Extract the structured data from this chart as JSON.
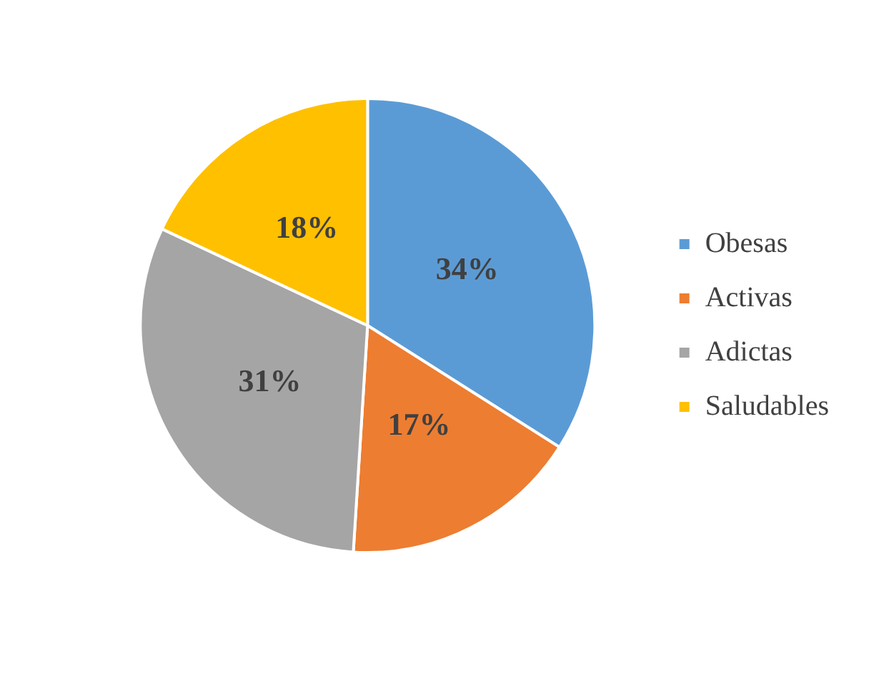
{
  "chart_data": {
    "type": "pie",
    "categories": [
      "Obesas",
      "Activas",
      "Adictas",
      "Saludables"
    ],
    "values": [
      34,
      17,
      31,
      18
    ],
    "colors": [
      "#5b9bd5",
      "#ed7d31",
      "#a5a5a5",
      "#ffc000"
    ],
    "value_labels": [
      "34%",
      "17%",
      "31%",
      "18%"
    ],
    "legend": "right"
  }
}
